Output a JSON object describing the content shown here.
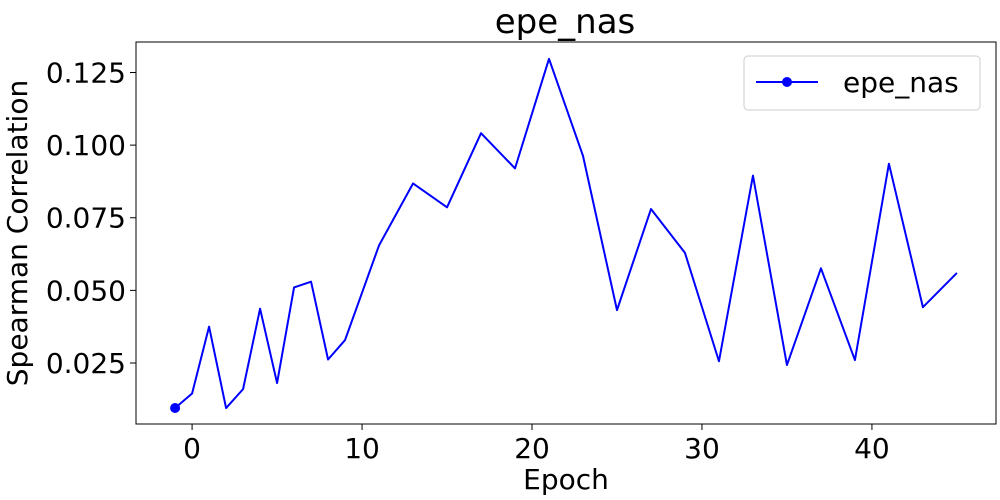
{
  "chart_data": {
    "type": "line",
    "title": "epe_nas",
    "xlabel": "Epoch",
    "ylabel": "Spearman Correlation",
    "xlim": [
      -3.3,
      47.3
    ],
    "ylim": [
      0.004,
      0.1355
    ],
    "xticks": [
      0,
      10,
      20,
      30,
      40
    ],
    "xtick_labels": [
      "0",
      "10",
      "20",
      "30",
      "40"
    ],
    "yticks": [
      0.025,
      0.05,
      0.075,
      0.1,
      0.125
    ],
    "ytick_labels": [
      "0.025",
      "0.050",
      "0.075",
      "0.100",
      "0.125"
    ],
    "grid": false,
    "legend_position": "top-right",
    "colors": {
      "series": "#0000ff"
    },
    "series": [
      {
        "name": "epe_nas",
        "marker_at_first_point": true,
        "x": [
          -1,
          0,
          1,
          2,
          3,
          4,
          5,
          6,
          7,
          8,
          9,
          11,
          13,
          15,
          17,
          19,
          21,
          23,
          25,
          27,
          29,
          31,
          33,
          35,
          37,
          39,
          41,
          43,
          45
        ],
        "y": [
          0.0095,
          0.0145,
          0.0375,
          0.0095,
          0.016,
          0.0437,
          0.0181,
          0.051,
          0.053,
          0.0262,
          0.0329,
          0.0655,
          0.0868,
          0.0786,
          0.1041,
          0.092,
          0.1297,
          0.0963,
          0.0432,
          0.078,
          0.0629,
          0.0256,
          0.0895,
          0.0243,
          0.0576,
          0.026,
          0.0936,
          0.0442,
          0.056
        ]
      }
    ]
  }
}
